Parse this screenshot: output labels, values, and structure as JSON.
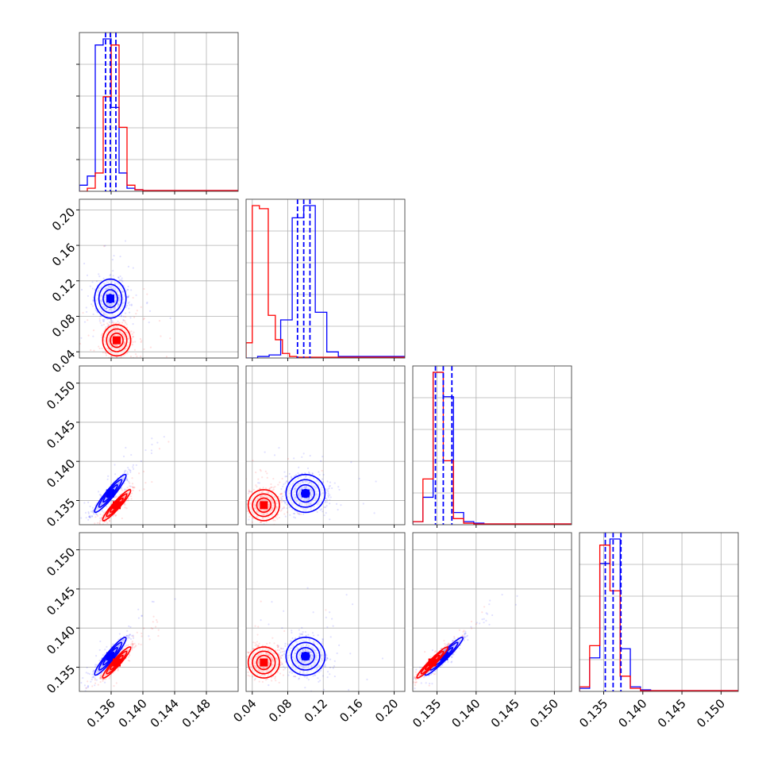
{
  "chart_data": {
    "type": "corner",
    "colors": {
      "series_a": "#0000ff",
      "series_b": "#ff0000",
      "grid": "#b0b0b0",
      "frame": "#444444"
    },
    "grid": true,
    "parameters": [
      {
        "range": [
          0.132,
          0.152
        ],
        "ticks": [
          0.136,
          0.14,
          0.144,
          0.148
        ],
        "tick_labels": [
          "0.136",
          "0.140",
          "0.144",
          "0.148"
        ]
      },
      {
        "range": [
          0.033,
          0.212
        ],
        "ticks": [
          0.04,
          0.08,
          0.12,
          0.16,
          0.2
        ],
        "tick_labels": [
          "0.04",
          "0.08",
          "0.12",
          "0.16",
          "0.20"
        ]
      },
      {
        "range": [
          0.1319,
          0.1522
        ],
        "ticks": [
          0.135,
          0.14,
          0.145,
          0.15
        ],
        "tick_labels": [
          "0.135",
          "0.140",
          "0.145",
          "0.150"
        ]
      },
      {
        "range": [
          0.1319,
          0.1522
        ],
        "ticks": [
          0.135,
          0.14,
          0.145,
          0.15
        ],
        "tick_labels": [
          "0.135",
          "0.140",
          "0.145",
          "0.150"
        ]
      }
    ],
    "series": [
      {
        "color": "#0000ff",
        "centers": [
          0.1359,
          0.1,
          0.1359,
          0.1364
        ],
        "sigmas": [
          0.0009,
          0.01,
          0.0011,
          0.0011
        ],
        "quantiles": [
          [
            0.1353,
            0.1359,
            0.1366
          ],
          [
            0.091,
            0.098,
            0.105
          ],
          [
            0.1348,
            0.1358,
            0.1369
          ],
          [
            0.1352,
            0.1362,
            0.1372
          ]
        ],
        "hist_bins": [
          {
            "edges": [
              0.132,
              0.133,
              0.134,
              0.135,
              0.136,
              0.137,
              0.138,
              0.139,
              0.14,
              0.152
            ],
            "counts": [
              4,
              10,
              96,
              100,
              55,
              12,
              2,
              1,
              0.5
            ]
          },
          {
            "edges": [
              0.033,
              0.046,
              0.059,
              0.072,
              0.085,
              0.098,
              0.111,
              0.124,
              0.137,
              0.212
            ],
            "counts": [
              0,
              1,
              2,
              25,
              92,
              100,
              30,
              4,
              1
            ]
          },
          {
            "edges": [
              0.1319,
              0.1332,
              0.1345,
              0.1358,
              0.1371,
              0.1384,
              0.1397,
              0.141,
              0.1522
            ],
            "counts": [
              2,
              18,
              100,
              84,
              8,
              2,
              1,
              0.5
            ]
          },
          {
            "edges": [
              0.1319,
              0.1332,
              0.1345,
              0.1358,
              0.1371,
              0.1384,
              0.1397,
              0.141,
              0.1522
            ],
            "counts": [
              2,
              22,
              84,
              100,
              28,
              3,
              1,
              0.5
            ]
          }
        ]
      },
      {
        "color": "#ff0000",
        "centers": [
          0.1367,
          0.053,
          0.1344,
          0.1356
        ],
        "sigmas": [
          0.0008,
          0.008,
          0.0009,
          0.0009
        ],
        "quantiles": [],
        "hist_bins": [
          {
            "edges": [
              0.132,
              0.133,
              0.134,
              0.135,
              0.136,
              0.137,
              0.138,
              0.139,
              0.14,
              0.152
            ],
            "counts": [
              0,
              2,
              12,
              62,
              96,
              42,
              4,
              1,
              0.5
            ]
          },
          {
            "edges": [
              0.033,
              0.04,
              0.048,
              0.058,
              0.066,
              0.074,
              0.082,
              0.09,
              0.212
            ],
            "counts": [
              10,
              100,
              98,
              28,
              12,
              3,
              1,
              0.5
            ]
          },
          {
            "edges": [
              0.1319,
              0.1332,
              0.1345,
              0.1358,
              0.1371,
              0.1384,
              0.1397,
              0.1522
            ],
            "counts": [
              2,
              30,
              100,
              42,
              4,
              1,
              0.5
            ]
          },
          {
            "edges": [
              0.1319,
              0.1332,
              0.1345,
              0.1358,
              0.1371,
              0.1384,
              0.1397,
              0.1522
            ],
            "counts": [
              3,
              30,
              96,
              66,
              10,
              2,
              0.5
            ]
          }
        ]
      }
    ],
    "correlations": [
      {
        "pair": [
          0,
          1
        ],
        "series_a": 0.0,
        "series_b": 0.0
      },
      {
        "pair": [
          0,
          2
        ],
        "series_a": 0.94,
        "series_b": 0.94
      },
      {
        "pair": [
          0,
          3
        ],
        "series_a": 0.94,
        "series_b": 0.94
      },
      {
        "pair": [
          1,
          2
        ],
        "series_a": 0.0,
        "series_b": 0.0
      },
      {
        "pair": [
          1,
          3
        ],
        "series_a": 0.0,
        "series_b": 0.0
      },
      {
        "pair": [
          2,
          3
        ],
        "series_a": 0.96,
        "series_b": 0.96
      }
    ]
  }
}
